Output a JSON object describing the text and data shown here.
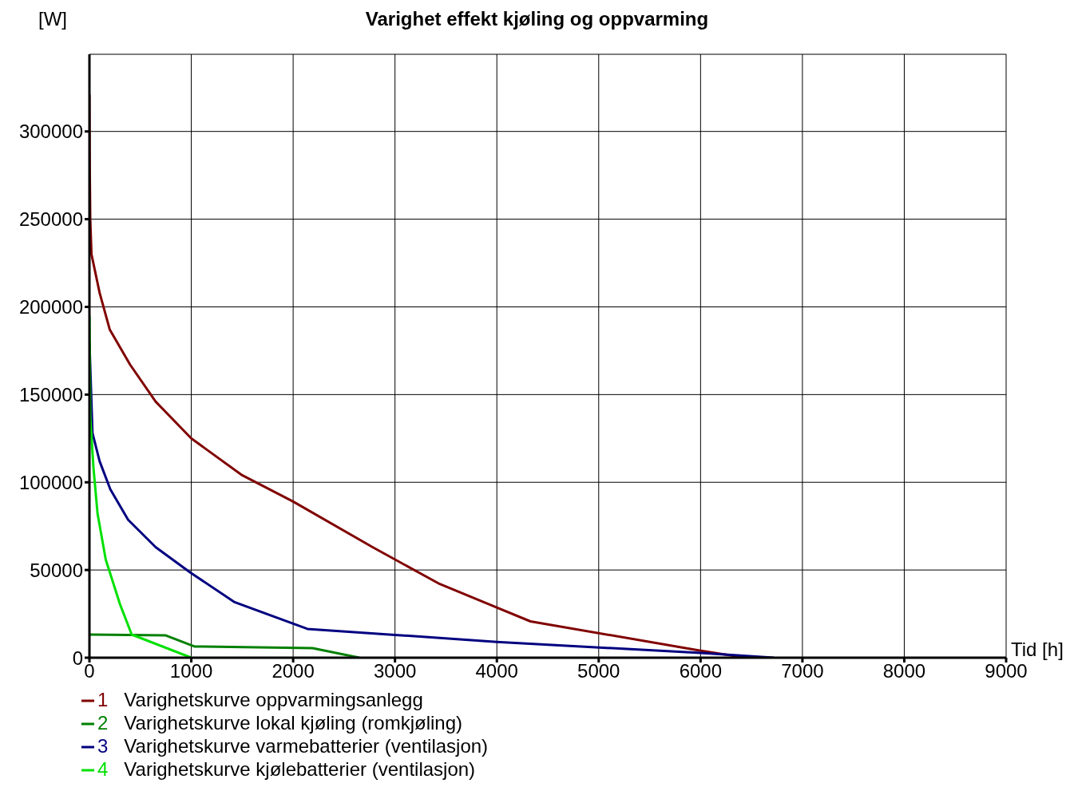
{
  "chart_data": {
    "type": "line",
    "title": "Varighet effekt kjøling og oppvarming",
    "ylabel": "[W]",
    "xlabel": "Tid [h]",
    "xlim": [
      0,
      9000
    ],
    "xticks": [
      0,
      1000,
      2000,
      3000,
      4000,
      5000,
      6000,
      7000,
      8000,
      9000
    ],
    "ylim": [
      0,
      344000
    ],
    "yticks": [
      0,
      50000,
      100000,
      150000,
      200000,
      250000,
      300000
    ],
    "grid": true,
    "legend": "bottom",
    "line_style": "solid",
    "series": [
      {
        "name": "1 Varighetskurve oppvarmingsanlegg",
        "color": "#800000",
        "x": [
          0,
          3,
          8,
          20,
          100,
          200,
          400,
          650,
          1000,
          1500,
          2000,
          2780,
          3440,
          4330,
          5990,
          6440
        ],
        "values": [
          321000,
          280000,
          250000,
          230000,
          208000,
          187000,
          167000,
          146000,
          125000,
          104000,
          89000,
          63000,
          42000,
          20700,
          4100,
          0
        ]
      },
      {
        "name": "2 Varighetskurve lokal kjøling (romkjøling)",
        "color": "#008000",
        "x": [
          0,
          750,
          1030,
          2190,
          2650
        ],
        "values": [
          13200,
          12700,
          6400,
          5500,
          0
        ]
      },
      {
        "name": "3 Varighetskurve varmebatterier (ventilasjon)",
        "color": "#000080",
        "x": [
          0,
          30,
          100,
          205,
          380,
          650,
          990,
          1420,
          2140,
          3000,
          4000,
          6000,
          6720
        ],
        "values": [
          180000,
          128000,
          112000,
          96000,
          78600,
          63000,
          48600,
          31800,
          16400,
          13000,
          9000,
          2700,
          0
        ]
      },
      {
        "name": "4 Varighetskurve kjølebatterier (ventilasjon)",
        "color": "#00e000",
        "x": [
          0,
          8,
          40,
          80,
          160,
          300,
          415,
          1000
        ],
        "values": [
          195000,
          137000,
          108000,
          82000,
          56000,
          30500,
          13200,
          0
        ]
      }
    ]
  }
}
